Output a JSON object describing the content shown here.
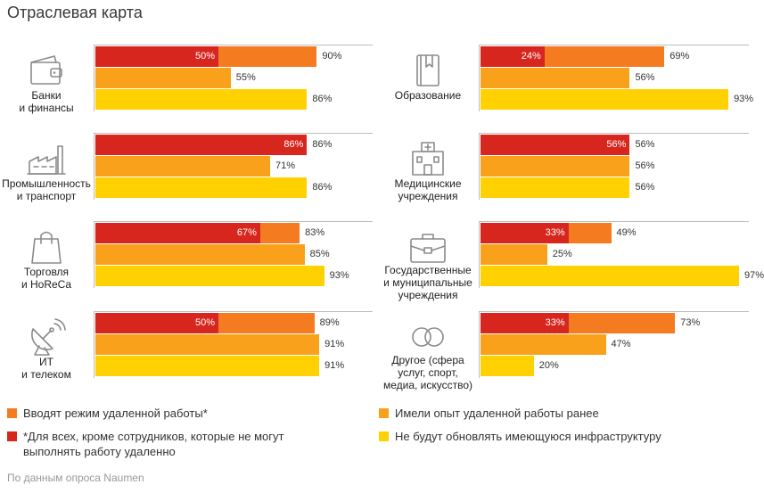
{
  "title": "Отраслевая карта",
  "source": "По данным опроса Naumen",
  "colors": {
    "remote": "#F47B20",
    "except": "#D7261E",
    "experience": "#F9A11B",
    "infra": "#FFD100",
    "frame": "#bdbdbd"
  },
  "legend": {
    "remote": "Вводят режим удаленной работы*",
    "except": "*Для всех, кроме сотрудников, которые не могут выполнять работу удаленно",
    "experience": "Имели опыт удаленной работы ранее",
    "infra": "Не будут обновлять имеющуюся инфраструктуру"
  },
  "chart_data": {
    "type": "bar",
    "title": "Отраслевая карта",
    "xlim": [
      0,
      100
    ],
    "series_names": [
      "Вводят режим удаленной работы*",
      "*Для всех, кроме сотрудников, которые не могут выполнять работу удаленно",
      "Имели опыт удаленной работы ранее",
      "Не будут обновлять имеющуюся инфраструктуру"
    ],
    "categories": [
      {
        "label": "Банки\nи финансы",
        "icon": "wallet-icon",
        "remote": 90,
        "except": 50,
        "experience": 55,
        "infra": 86
      },
      {
        "label": "Промышленность\nи транспорт",
        "icon": "factory-icon",
        "remote": 86,
        "except": 86,
        "experience": 71,
        "infra": 86
      },
      {
        "label": "Торговля\nи HoReCa",
        "icon": "shopping-bag-icon",
        "remote": 83,
        "except": 67,
        "experience": 85,
        "infra": 93
      },
      {
        "label": "ИТ\nи телеком",
        "icon": "satellite-dish-icon",
        "remote": 89,
        "except": 50,
        "experience": 91,
        "infra": 91
      },
      {
        "label": "Образование",
        "icon": "book-icon",
        "remote": 69,
        "except": 24,
        "experience": 56,
        "infra": 93
      },
      {
        "label": "Медицинские\nучреждения",
        "icon": "hospital-icon",
        "remote": 56,
        "except": 56,
        "experience": 56,
        "infra": 56
      },
      {
        "label": "Государственные\nи муниципальные\nучреждения",
        "icon": "briefcase-icon",
        "remote": 49,
        "except": 33,
        "experience": 25,
        "infra": 97
      },
      {
        "label": "Другое (сфера\nуслуг, спорт,\nмедиа, искусство)",
        "icon": "infinity-icon",
        "remote": 73,
        "except": 33,
        "experience": 47,
        "infra": 20
      }
    ]
  }
}
